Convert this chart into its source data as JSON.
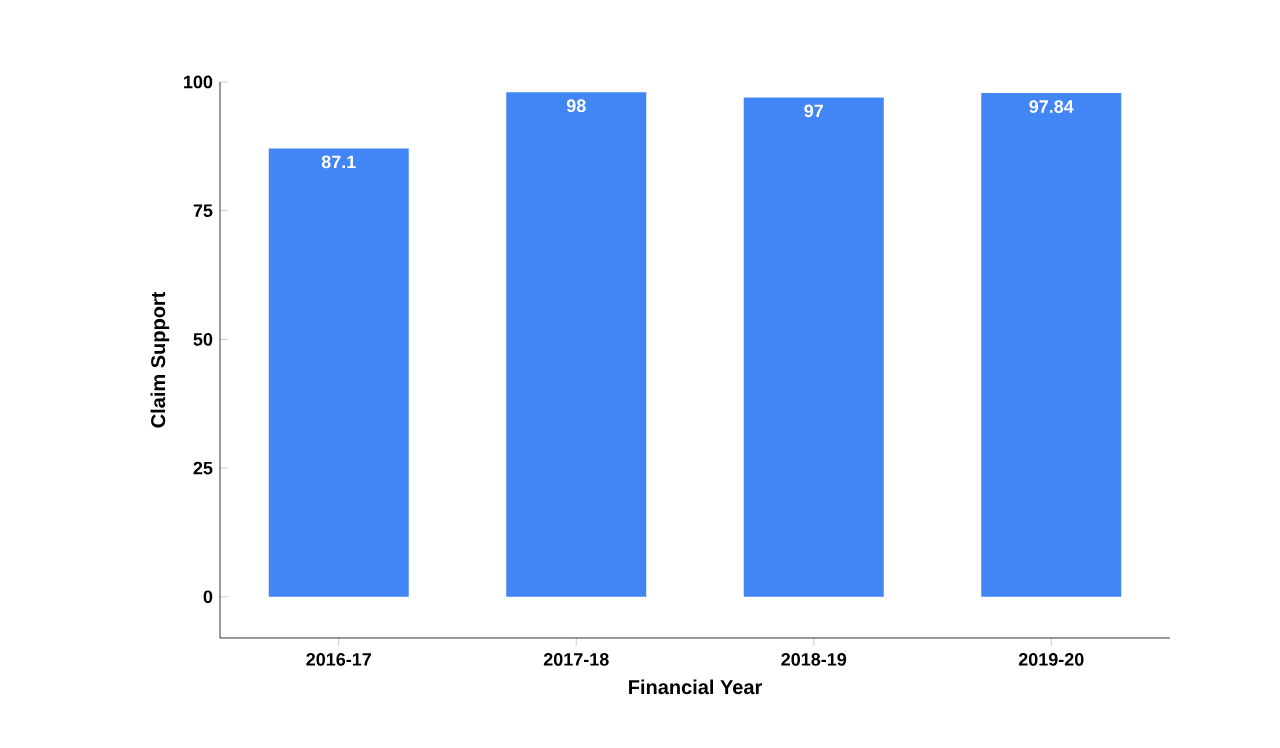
{
  "chart_data": {
    "type": "bar",
    "xlabel": "Financial Year",
    "ylabel": "Claim Support",
    "categories": [
      "2016-17",
      "2017-18",
      "2018-19",
      "2019-20"
    ],
    "values": [
      87.1,
      98,
      97,
      97.84
    ],
    "color": "#4285f4",
    "ylim": [
      -8,
      100
    ],
    "yticks": [
      0,
      25,
      50,
      75,
      100
    ],
    "data_labels": true
  }
}
